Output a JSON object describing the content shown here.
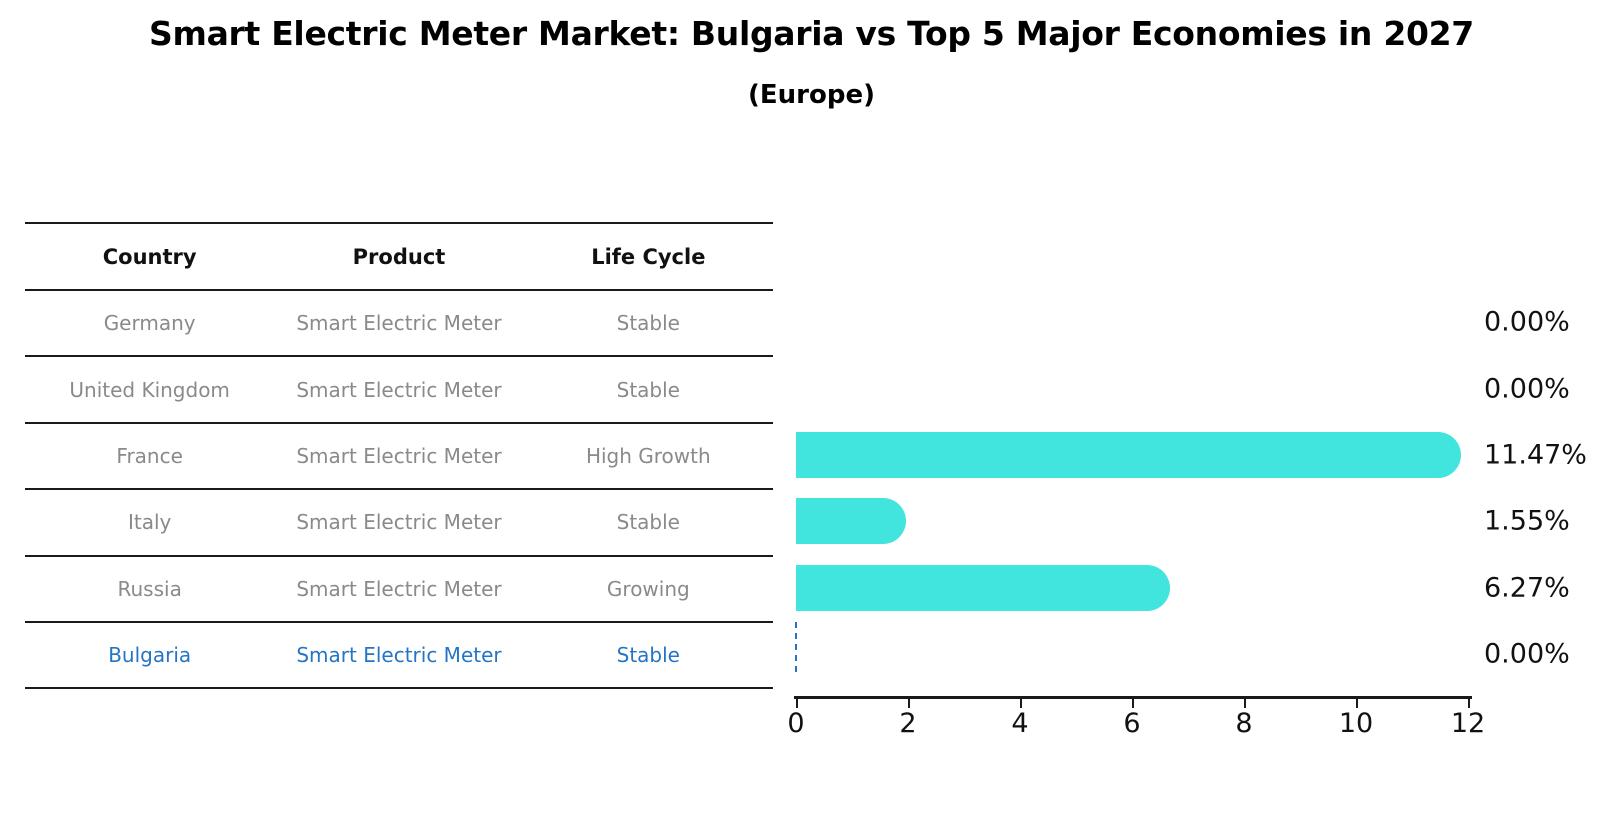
{
  "title": "Smart Electric Meter Market: Bulgaria vs Top 5 Major Economies in 2027",
  "subtitle": "(Europe)",
  "colors": {
    "bar": "#42e4de",
    "highlight_text": "#2575c4",
    "zero_marker": "#2575c4",
    "table_text": "#8a8a8a",
    "header_text": "#111111",
    "rule_line": "#1a1a1a",
    "value_text": "#111111"
  },
  "chart_data": {
    "type": "bar",
    "orientation": "horizontal",
    "title": "Smart Electric Meter Market: Bulgaria vs Top 5 Major Economies in 2027",
    "subtitle": "(Europe)",
    "xlim": [
      0,
      12
    ],
    "xticks": [
      0,
      2,
      4,
      6,
      8,
      10,
      12
    ],
    "grid": false,
    "legend": null,
    "table_columns": [
      "Country",
      "Product",
      "Life Cycle"
    ],
    "categories": [
      "Germany",
      "United Kingdom",
      "France",
      "Italy",
      "Russia",
      "Bulgaria"
    ],
    "values": [
      0.0,
      0.0,
      11.47,
      1.55,
      6.27,
      0.0
    ],
    "rows": [
      {
        "country": "Germany",
        "product": "Smart Electric Meter",
        "life_cycle": "Stable",
        "value": 0.0,
        "value_label": "0.00%",
        "highlight": false,
        "zero_marker": false
      },
      {
        "country": "United Kingdom",
        "product": "Smart Electric Meter",
        "life_cycle": "Stable",
        "value": 0.0,
        "value_label": "0.00%",
        "highlight": false,
        "zero_marker": false
      },
      {
        "country": "France",
        "product": "Smart Electric Meter",
        "life_cycle": "High Growth",
        "value": 11.47,
        "value_label": "11.47%",
        "highlight": false,
        "zero_marker": false
      },
      {
        "country": "Italy",
        "product": "Smart Electric Meter",
        "life_cycle": "Stable",
        "value": 1.55,
        "value_label": "1.55%",
        "highlight": false,
        "zero_marker": false
      },
      {
        "country": "Russia",
        "product": "Smart Electric Meter",
        "life_cycle": "Growing",
        "value": 6.27,
        "value_label": "6.27%",
        "highlight": false,
        "zero_marker": false
      },
      {
        "country": "Bulgaria",
        "product": "Smart Electric Meter",
        "life_cycle": "Stable",
        "value": 0.0,
        "value_label": "0.00%",
        "highlight": true,
        "zero_marker": true
      }
    ]
  }
}
